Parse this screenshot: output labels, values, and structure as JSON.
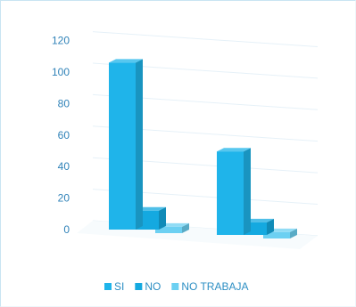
{
  "chart_data": {
    "type": "bar",
    "style": "3d-clustered",
    "title": "",
    "xlabel": "",
    "ylabel": "",
    "ylim": [
      0,
      120
    ],
    "yticks": [
      0,
      20,
      40,
      60,
      80,
      100,
      120
    ],
    "grid": true,
    "categories": [
      "",
      ""
    ],
    "series": [
      {
        "name": "SI",
        "values": [
          106,
          53
        ],
        "color": "#1fb4ea"
      },
      {
        "name": "NO",
        "values": [
          12,
          8
        ],
        "color": "#14a9e0"
      },
      {
        "name": "NO TRABAJA",
        "values": [
          4,
          4
        ],
        "color": "#6cd0f2"
      }
    ],
    "legend": {
      "position": "bottom"
    }
  }
}
